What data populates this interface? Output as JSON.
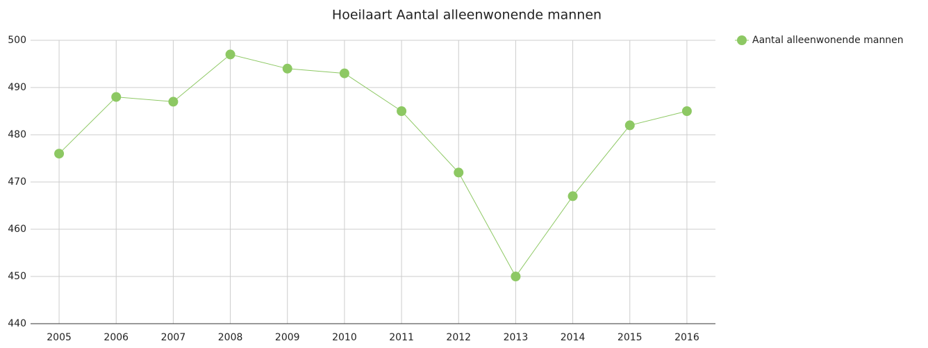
{
  "chart_data": {
    "type": "line",
    "title": "Hoeilaart  Aantal alleenwonende mannen",
    "categories": [
      "2005",
      "2006",
      "2007",
      "2008",
      "2009",
      "2010",
      "2011",
      "2012",
      "2013",
      "2014",
      "2015",
      "2016"
    ],
    "series": [
      {
        "name": "Aantal alleenwonende mannen",
        "color": "#8dc863",
        "values": [
          476,
          488,
          487,
          497,
          494,
          493,
          485,
          472,
          450,
          467,
          482,
          485
        ]
      }
    ],
    "ylim": [
      440,
      500
    ],
    "yticks": [
      440,
      450,
      460,
      470,
      480,
      490,
      500
    ],
    "grid": true,
    "legend": "top-right"
  }
}
